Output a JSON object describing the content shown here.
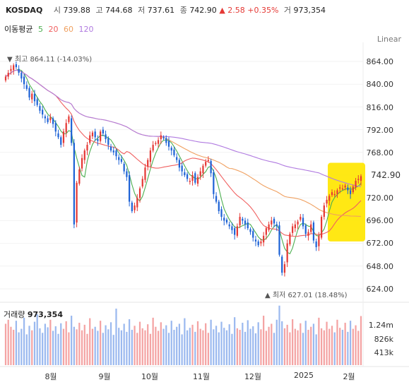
{
  "header": {
    "symbol": "KOSDAQ",
    "open_label": "시",
    "open": "739.88",
    "high_label": "고",
    "high": "744.68",
    "low_label": "저",
    "low": "737.61",
    "close_label": "종",
    "close": "742.90",
    "change": "▲ 2.58 +0.35%",
    "volume_label": "거",
    "volume": "973,354"
  },
  "ma_legend": {
    "title": "이동평균",
    "periods": [
      "5",
      "20",
      "60",
      "120"
    ],
    "colors": [
      "#4caf50",
      "#f06060",
      "#f0a060",
      "#b07ae0"
    ]
  },
  "scale_mode": "Linear",
  "price_axis": [
    "864.00",
    "840.00",
    "816.00",
    "792.00",
    "768.00",
    "744.00",
    "720.00",
    "696.00",
    "672.00",
    "648.00",
    "624.00"
  ],
  "last_price": "742.90",
  "annotations": {
    "high": "▼ 최고 864.11 (-14.03%)",
    "low": "▲ 최저 627.01 (18.48%)"
  },
  "volume_panel": {
    "title": "거래량",
    "value": "973,354",
    "axis": [
      "1.24m",
      "826k",
      "413k"
    ]
  },
  "x_axis": [
    "8월",
    "9월",
    "10월",
    "11월",
    "12월",
    "2025",
    "2월"
  ],
  "colors": {
    "up": "#e53935",
    "down": "#1e63d6",
    "highlight": "#ffe600"
  },
  "chart_data": {
    "type": "candlestick",
    "ylim": [
      615,
      870
    ],
    "volume_ylim": [
      0,
      1650000
    ],
    "closes": [
      848,
      852,
      856,
      860,
      858,
      852,
      846,
      840,
      835,
      826,
      830,
      822,
      818,
      812,
      808,
      804,
      800,
      805,
      798,
      790,
      784,
      776,
      790,
      799,
      806,
      778,
      692,
      736,
      750,
      762,
      770,
      776,
      786,
      789,
      784,
      780,
      790,
      788,
      782,
      776,
      770,
      768,
      764,
      760,
      758,
      748,
      742,
      716,
      706,
      712,
      720,
      730,
      740,
      752,
      760,
      770,
      776,
      778,
      781,
      786,
      783,
      778,
      774,
      770,
      765,
      760,
      752,
      748,
      744,
      740,
      738,
      744,
      736,
      742,
      748,
      754,
      758,
      760,
      746,
      724,
      716,
      706,
      700,
      696,
      694,
      690,
      686,
      681,
      690,
      700,
      696,
      692,
      688,
      684,
      678,
      674,
      670,
      674,
      680,
      688,
      692,
      696,
      693,
      690,
      660,
      641,
      650,
      672,
      682,
      690,
      692,
      695,
      700,
      690,
      682,
      684,
      692,
      675,
      668,
      680,
      700,
      712,
      718,
      722,
      726,
      724,
      728,
      731,
      730,
      733,
      728,
      724,
      732,
      738,
      740,
      742.9
    ],
    "volumes": [
      820000,
      900000,
      760000,
      700000,
      880000,
      650000,
      720000,
      940000,
      610000,
      780000,
      690000,
      860000,
      1010000,
      730000,
      640000,
      820000,
      750000,
      900000,
      680000,
      770000,
      620000,
      830000,
      720000,
      870000,
      650000,
      980000,
      760000,
      710000,
      840000,
      690000,
      800000,
      620000,
      930000,
      720000,
      760000,
      680000,
      880000,
      640000,
      790000,
      710000,
      850000,
      600000,
      1120000,
      740000,
      690000,
      820000,
      660000,
      910000,
      700000,
      780000,
      640000,
      860000,
      730000,
      690000,
      810000,
      620000,
      940000,
      760000,
      680000,
      850000,
      720000,
      790000,
      640000,
      880000,
      700000,
      760000,
      820000,
      610000,
      930000,
      690000,
      740000,
      800000,
      660000,
      870000,
      720000,
      690000,
      830000,
      640000,
      900000,
      710000,
      780000,
      650000,
      860000,
      740000,
      690000,
      810000,
      620000,
      950000,
      730000,
      700000,
      840000,
      660000,
      890000,
      720000,
      770000,
      630000,
      850000,
      710000,
      980000,
      680000,
      760000,
      820000,
      640000,
      900000,
      1180000,
      870000,
      730000,
      800000,
      650000,
      910000,
      720000,
      690000,
      830000,
      640000,
      880000,
      700000,
      760000,
      820000,
      610000,
      940000,
      730000,
      690000,
      860000,
      720000,
      780000,
      650000,
      900000,
      740000,
      700000,
      840000,
      660000,
      880000,
      720000,
      790000,
      680000,
      973354
    ]
  }
}
